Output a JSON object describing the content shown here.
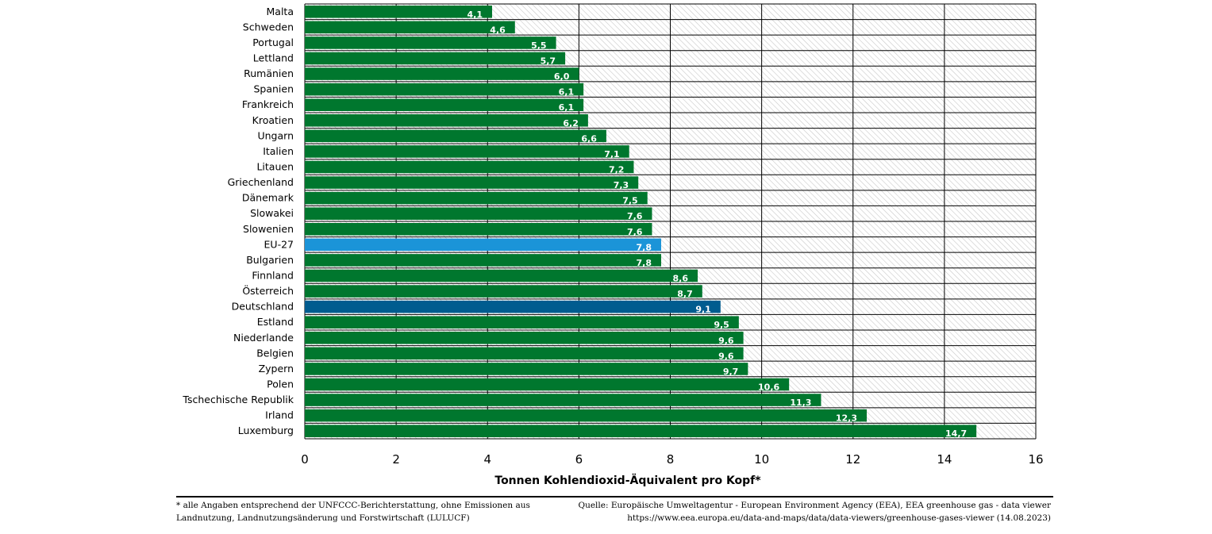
{
  "chart_data": {
    "type": "bar",
    "orientation": "horizontal",
    "categories": [
      "Malta",
      "Schweden",
      "Portugal",
      "Lettland",
      "Rumänien",
      "Spanien",
      "Frankreich",
      "Kroatien",
      "Ungarn",
      "Italien",
      "Litauen",
      "Griechenland",
      "Dänemark",
      "Slowakei",
      "Slowenien",
      "EU-27",
      "Bulgarien",
      "Finnland",
      "Österreich",
      "Deutschland",
      "Estland",
      "Niederlande",
      "Belgien",
      "Zypern",
      "Polen",
      "Tschechische Republik",
      "Irland",
      "Luxemburg"
    ],
    "values": [
      4.1,
      4.6,
      5.5,
      5.7,
      6.0,
      6.1,
      6.1,
      6.2,
      6.6,
      7.1,
      7.2,
      7.3,
      7.5,
      7.6,
      7.6,
      7.8,
      7.8,
      8.6,
      8.7,
      9.1,
      9.5,
      9.6,
      9.6,
      9.7,
      10.6,
      11.3,
      12.3,
      14.7
    ],
    "value_labels": [
      "4,1",
      "4,6",
      "5,5",
      "5,7",
      "6,0",
      "6,1",
      "6,1",
      "6,2",
      "6,6",
      "7,1",
      "7,2",
      "7,3",
      "7,5",
      "7,6",
      "7,6",
      "7,8",
      "7,8",
      "8,6",
      "8,7",
      "9,1",
      "9,5",
      "9,6",
      "9,6",
      "9,7",
      "10,6",
      "11,3",
      "12,3",
      "14,7"
    ],
    "xlim": [
      0,
      16
    ],
    "xticks": [
      "0",
      "2",
      "4",
      "6",
      "8",
      "10",
      "12",
      "14",
      "16"
    ],
    "xlabel": "Tonnen Kohlendioxid-Äquivalent pro Kopf*",
    "ylabel": "",
    "title": "",
    "grid": true,
    "colors": {
      "default": "#00772e",
      "EU-27": "#1b94d8",
      "Deutschland": "#005c8f",
      "hatch": "#c8c8c8",
      "grid": "#000000"
    }
  },
  "footer": {
    "note_line1": "* alle Angaben entsprechend der UNFCCC-Berichterstattung, ohne Emissionen aus",
    "note_line2": "Landnutzung, Landnutzungsänderung und Forstwirtschaft (LULUCF)",
    "source_line1": "Quelle: Europäische Umweltagentur - European Environment Agency (EEA), EEA greenhouse gas - data viewer",
    "source_line2": "https://www.eea.europa.eu/data-and-maps/data/data-viewers/greenhouse-gases-viewer (14.08.2023)"
  }
}
